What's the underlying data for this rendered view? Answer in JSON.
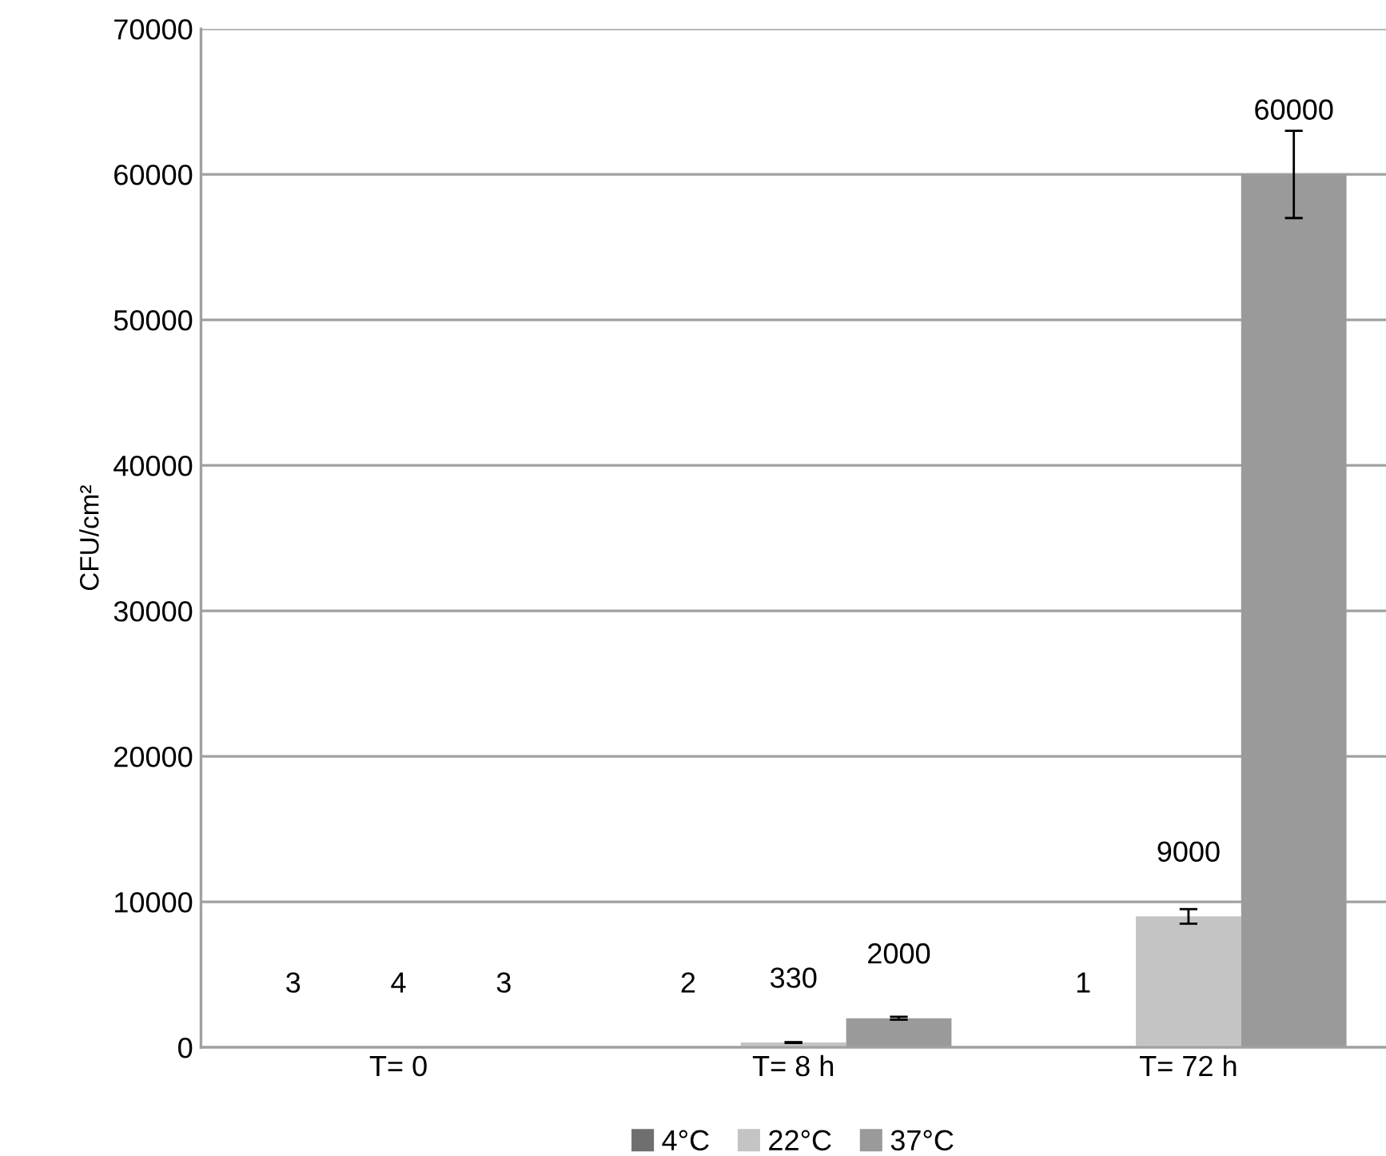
{
  "chart_data": {
    "type": "bar",
    "ylabel": "CFU/cm²",
    "categories": [
      "T= 0",
      "T= 8 h",
      "T= 72 h"
    ],
    "series": [
      {
        "name": "4°C",
        "color": "#6f6f6f",
        "values": [
          3,
          2,
          1
        ],
        "errors": [
          null,
          null,
          null
        ]
      },
      {
        "name": "22°C",
        "color": "#c4c4c4",
        "values": [
          4,
          330,
          9000
        ],
        "errors": [
          null,
          30,
          500
        ]
      },
      {
        "name": "37°C",
        "color": "#9a9a9a",
        "values": [
          3,
          2000,
          60000
        ],
        "errors": [
          null,
          100,
          3000
        ]
      }
    ],
    "ylim": [
      0,
      70000
    ],
    "yticks": [
      0,
      10000,
      20000,
      30000,
      40000,
      50000,
      60000,
      70000
    ],
    "grid": "y",
    "legend": "bottom",
    "data_labels": true
  }
}
